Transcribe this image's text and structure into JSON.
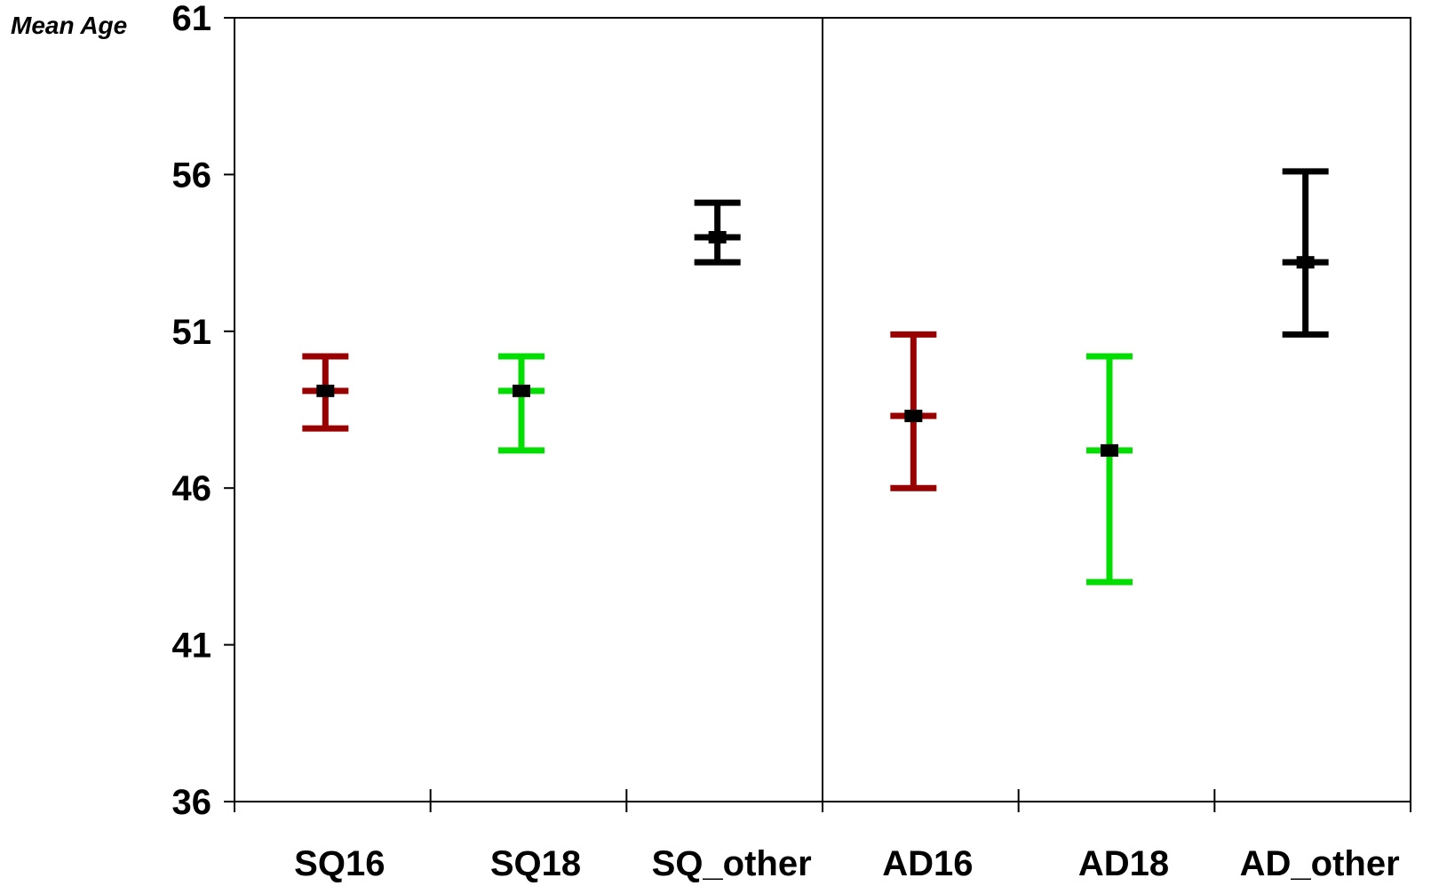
{
  "chart_data": {
    "type": "error_bar",
    "ylabel": "Mean Age",
    "xlabel": "",
    "ylim": [
      36,
      61
    ],
    "yticks": [
      "61",
      "56",
      "51",
      "46",
      "41",
      "36"
    ],
    "categories": [
      "SQ16",
      "SQ18",
      "SQ_other",
      "AD16",
      "AD18",
      "AD_other"
    ],
    "groups": [
      {
        "categories": [
          "SQ16",
          "SQ18",
          "SQ_other"
        ]
      },
      {
        "categories": [
          "AD16",
          "AD18",
          "AD_other"
        ]
      }
    ],
    "points": [
      {
        "category": "SQ16",
        "mean": 49.1,
        "lower": 47.9,
        "upper": 50.2,
        "color": "#990000"
      },
      {
        "category": "SQ18",
        "mean": 49.1,
        "lower": 47.2,
        "upper": 50.2,
        "color": "#00dd00"
      },
      {
        "category": "SQ_other",
        "mean": 54.0,
        "lower": 53.2,
        "upper": 55.1,
        "color": "#000000"
      },
      {
        "category": "AD16",
        "mean": 48.3,
        "lower": 46.0,
        "upper": 50.9,
        "color": "#990000"
      },
      {
        "category": "AD18",
        "mean": 47.2,
        "lower": 43.0,
        "upper": 50.2,
        "color": "#00dd00"
      },
      {
        "category": "AD_other",
        "mean": 53.2,
        "lower": 50.9,
        "upper": 56.1,
        "color": "#000000"
      }
    ],
    "grid": false,
    "legend": "none"
  }
}
